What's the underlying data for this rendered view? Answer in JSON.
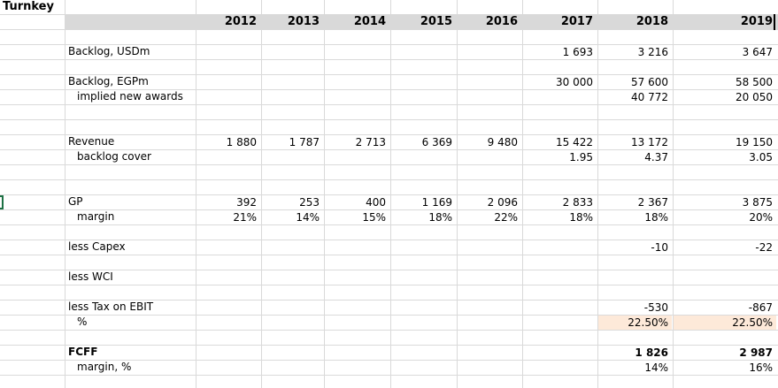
{
  "sheet_title": "Turnkey",
  "years": [
    "2012",
    "2013",
    "2014",
    "2015",
    "2016",
    "2017",
    "2018",
    "2019"
  ],
  "rows": {
    "backlog_usd": {
      "label": "Backlog, USDm",
      "values": [
        "",
        "",
        "",
        "",
        "",
        "1 693",
        "3 216",
        "3 647"
      ]
    },
    "backlog_egp": {
      "label": "Backlog, EGPm",
      "values": [
        "",
        "",
        "",
        "",
        "",
        "30 000",
        "57 600",
        "58 500"
      ]
    },
    "implied_awards": {
      "label": "implied new awards",
      "values": [
        "",
        "",
        "",
        "",
        "",
        "",
        "40 772",
        "20 050"
      ]
    },
    "revenue": {
      "label": "Revenue",
      "values": [
        "1 880",
        "1 787",
        "2 713",
        "6 369",
        "9 480",
        "15 422",
        "13 172",
        "19 150"
      ]
    },
    "backlog_cover": {
      "label": "backlog cover",
      "values": [
        "",
        "",
        "",
        "",
        "",
        "1.95",
        "4.37",
        "3.05"
      ]
    },
    "gp": {
      "label": "GP",
      "values": [
        "392",
        "253",
        "400",
        "1 169",
        "2 096",
        "2 833",
        "2 367",
        "3 875"
      ]
    },
    "gp_margin": {
      "label": "margin",
      "values": [
        "21%",
        "14%",
        "15%",
        "18%",
        "22%",
        "18%",
        "18%",
        "20%"
      ]
    },
    "capex": {
      "label": "less Capex",
      "values": [
        "",
        "",
        "",
        "",
        "",
        "",
        "-10",
        "-22"
      ]
    },
    "wci": {
      "label": "less WCI",
      "values": [
        "",
        "",
        "",
        "",
        "",
        "",
        "",
        ""
      ]
    },
    "tax": {
      "label": "less Tax on EBIT",
      "values": [
        "",
        "",
        "",
        "",
        "",
        "",
        "-530",
        "-867"
      ]
    },
    "tax_pct": {
      "label": "%",
      "values": [
        "",
        "",
        "",
        "",
        "",
        "",
        "22.50%",
        "22.50%"
      ]
    },
    "fcff": {
      "label": "FCFF",
      "values": [
        "",
        "",
        "",
        "",
        "",
        "",
        "1 826",
        "2 987"
      ]
    },
    "fcff_margin": {
      "label": "margin, %",
      "values": [
        "",
        "",
        "",
        "",
        "",
        "",
        "14%",
        "16%"
      ]
    }
  }
}
